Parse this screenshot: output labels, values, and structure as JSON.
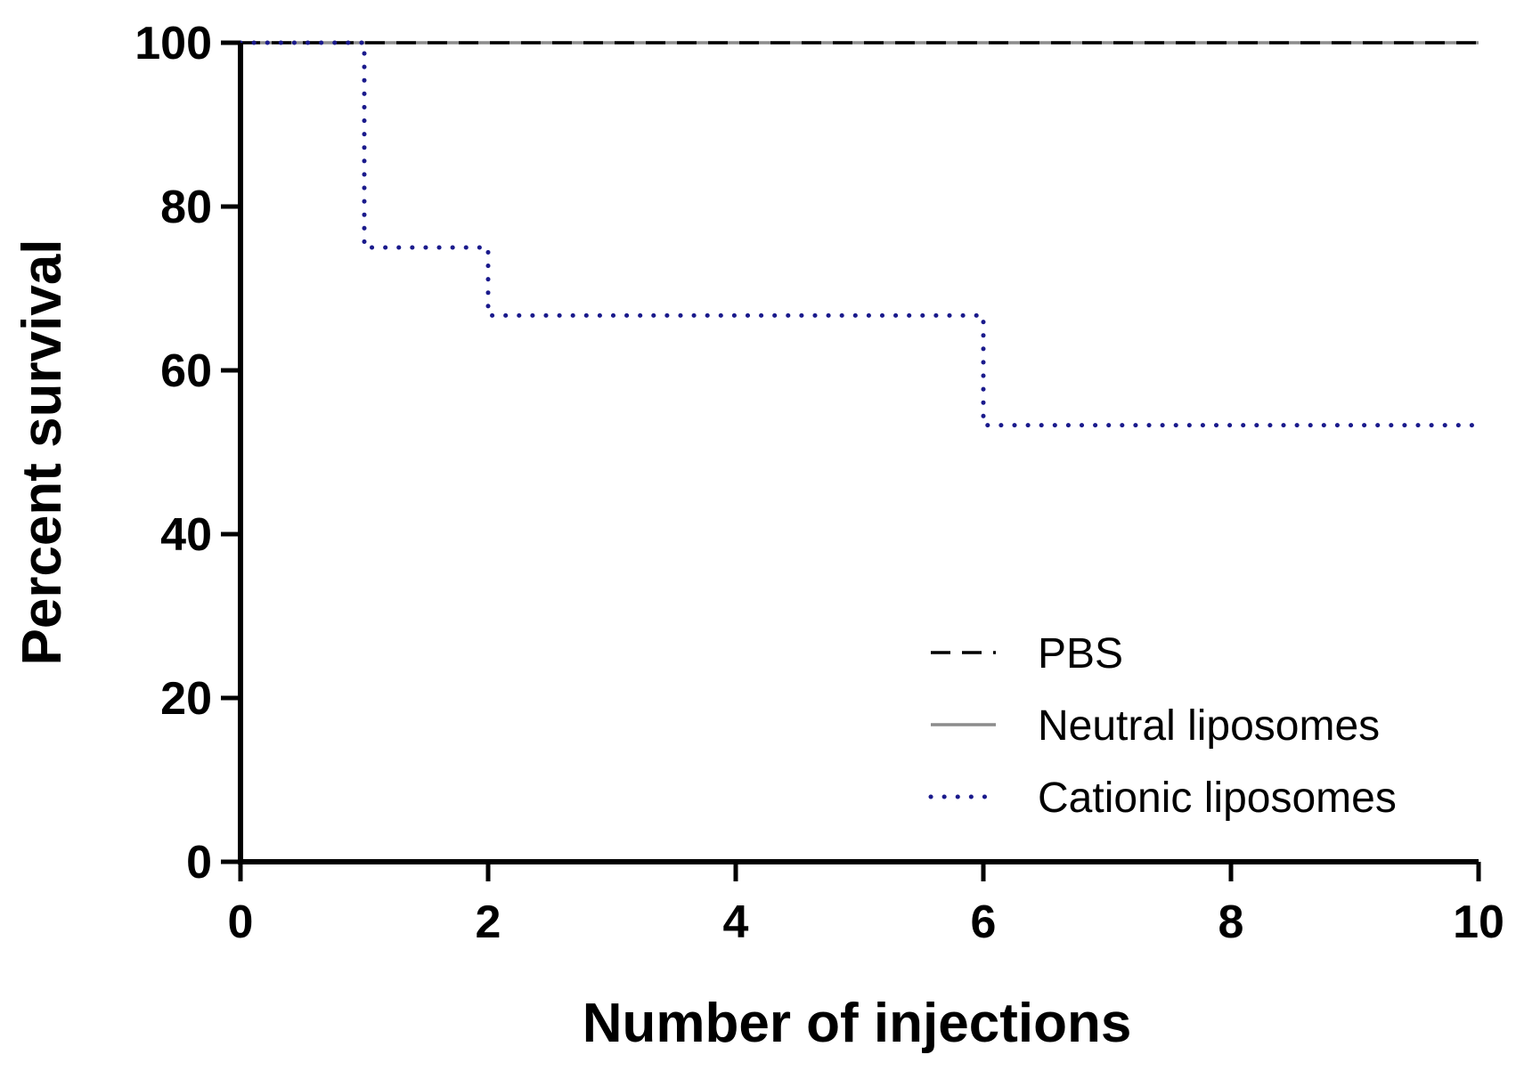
{
  "chart_data": {
    "type": "line",
    "subtype": "kaplan-meier step",
    "title": "",
    "xlabel": "Number of injections",
    "ylabel": "Percent survival",
    "xlim": [
      0,
      10
    ],
    "ylim": [
      0,
      100
    ],
    "xticks": [
      0,
      2,
      4,
      6,
      8,
      10
    ],
    "yticks": [
      0,
      20,
      40,
      60,
      80,
      100
    ],
    "grid": false,
    "legend_position": "bottom-right",
    "series": [
      {
        "name": "PBS",
        "style": "dashed",
        "color": "#000000",
        "x": [
          0,
          10
        ],
        "y": [
          100,
          100
        ]
      },
      {
        "name": "Neutral liposomes",
        "style": "solid",
        "color": "#8c8c8c",
        "x": [
          0,
          10
        ],
        "y": [
          100,
          100
        ]
      },
      {
        "name": "Cationic liposomes",
        "style": "dotted",
        "color": "#1a1a8c",
        "x": [
          0,
          1,
          2,
          6,
          10
        ],
        "y": [
          100,
          75,
          66.7,
          53.3,
          53.3
        ]
      }
    ]
  }
}
